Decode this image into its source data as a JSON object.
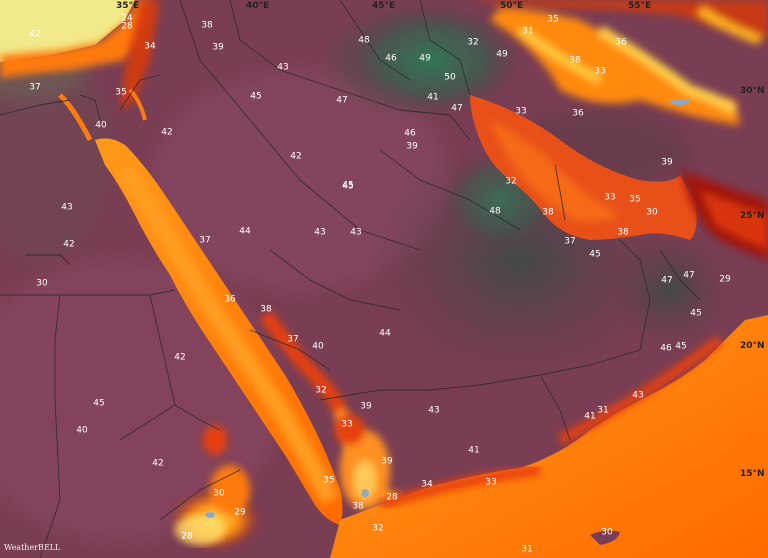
{
  "axes": {
    "lon_35": "35°E",
    "lon_40": "40°E",
    "lon_45": "45°E",
    "lon_50": "50°E",
    "lon_55": "55°E",
    "lat_30": "30°N",
    "lat_25": "25°N",
    "lat_20": "20°N",
    "lat_15": "15°N"
  },
  "logo": "WeatherBELL",
  "values": [
    "38",
    "39",
    "34",
    "24",
    "28",
    "42",
    "43",
    "45",
    "48",
    "46",
    "49",
    "50",
    "31",
    "35",
    "36",
    "33",
    "38",
    "37",
    "35",
    "40",
    "42",
    "47",
    "46",
    "32",
    "41",
    "39",
    "45",
    "42",
    "44",
    "43",
    "43",
    "48",
    "37",
    "36",
    "42",
    "47",
    "49",
    "47",
    "45",
    "41",
    "38",
    "40",
    "44",
    "37",
    "32",
    "33",
    "39",
    "39",
    "35",
    "28",
    "34",
    "33",
    "30",
    "38",
    "45",
    "40",
    "43",
    "45",
    "43",
    "42",
    "42",
    "30",
    "28",
    "29",
    "30",
    "32",
    "31",
    "31",
    "33",
    "36",
    "32",
    "38",
    "37",
    "45",
    "38",
    "39",
    "33",
    "35",
    "30",
    "29",
    "47",
    "45",
    "46",
    "43",
    "41"
  ]
}
